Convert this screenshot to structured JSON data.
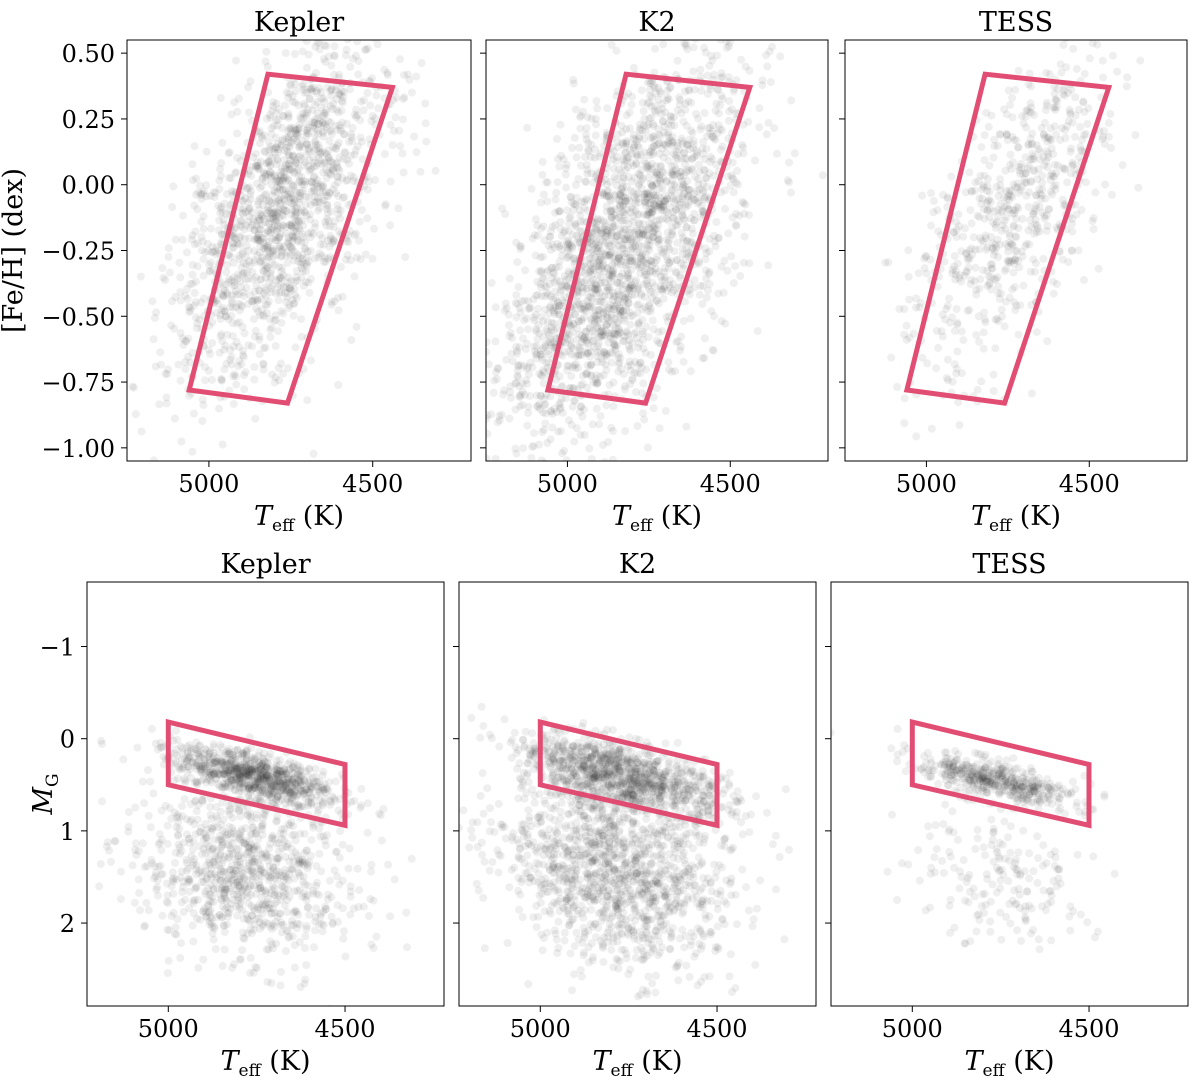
{
  "figure": {
    "accent_color": "#e0446b",
    "point_color": "#222222"
  },
  "chart_data": [
    {
      "type": "scatter",
      "title": "Kepler",
      "xlabel": "T_eff (K)",
      "ylabel": "[Fe/H] (dex)",
      "xlim": [
        5250,
        4200
      ],
      "ylim": [
        -1.05,
        0.55
      ],
      "xticks": [
        5000,
        4500
      ],
      "yticks": [
        0.5,
        0.25,
        0.0,
        -0.25,
        -0.5,
        -0.75,
        -1.0
      ],
      "ytick_labels": [
        "0.50",
        "0.25",
        "0.00",
        "−0.25",
        "−0.50",
        "−0.75",
        "−1.00"
      ],
      "region": [
        [
          5060,
          -0.78
        ],
        [
          4820,
          0.42
        ],
        [
          4440,
          0.37
        ],
        [
          4760,
          -0.83
        ]
      ],
      "cluster": {
        "x_mean": 4775,
        "x_sd": 165,
        "y_mean": -0.1,
        "y_sd": 0.26,
        "slope": -0.0013,
        "n": 1500
      }
    },
    {
      "type": "scatter",
      "title": "K2",
      "xlabel": "T_eff (K)",
      "ylabel": "",
      "xlim": [
        5250,
        4200
      ],
      "ylim": [
        -1.05,
        0.55
      ],
      "xticks": [
        5000,
        4500
      ],
      "region": [
        [
          5060,
          -0.78
        ],
        [
          4820,
          0.42
        ],
        [
          4440,
          0.37
        ],
        [
          4760,
          -0.83
        ]
      ],
      "cluster": {
        "x_mean": 4830,
        "x_sd": 185,
        "y_mean": -0.25,
        "y_sd": 0.3,
        "slope": -0.0012,
        "n": 2200
      }
    },
    {
      "type": "scatter",
      "title": "TESS",
      "xlabel": "T_eff (K)",
      "ylabel": "",
      "xlim": [
        5250,
        4200
      ],
      "ylim": [
        -1.05,
        0.55
      ],
      "xticks": [
        5000,
        4500
      ],
      "region": [
        [
          5060,
          -0.78
        ],
        [
          4820,
          0.42
        ],
        [
          4440,
          0.37
        ],
        [
          4760,
          -0.83
        ]
      ],
      "cluster": {
        "x_mean": 4730,
        "x_sd": 160,
        "y_mean": -0.1,
        "y_sd": 0.23,
        "slope": -0.0013,
        "n": 650
      }
    },
    {
      "type": "scatter",
      "title": "Kepler",
      "xlabel": "T_eff (K)",
      "ylabel": "M_G",
      "xlim": [
        5230,
        4220
      ],
      "ylim": [
        2.9,
        -1.7
      ],
      "xticks": [
        5000,
        4500
      ],
      "yticks": [
        -1,
        0,
        1,
        2
      ],
      "ytick_labels": [
        "−1",
        "0",
        "1",
        "2"
      ],
      "region": [
        [
          5000,
          -0.18
        ],
        [
          5000,
          0.5
        ],
        [
          4500,
          0.94
        ],
        [
          4500,
          0.28
        ]
      ],
      "clusters": [
        {
          "x_mean": 4760,
          "x_sd": 120,
          "y_mean": 0.4,
          "y_sd": 0.12,
          "slope": -0.0009,
          "n": 800
        },
        {
          "x_mean": 4780,
          "x_sd": 150,
          "y_mean": 1.45,
          "y_sd": 0.45,
          "slope": -0.0006,
          "n": 900
        }
      ]
    },
    {
      "type": "scatter",
      "title": "K2",
      "xlabel": "T_eff (K)",
      "ylabel": "",
      "xlim": [
        5230,
        4220
      ],
      "ylim": [
        2.9,
        -1.7
      ],
      "xticks": [
        5000,
        4500
      ],
      "region": [
        [
          5000,
          -0.18
        ],
        [
          5000,
          0.5
        ],
        [
          4500,
          0.94
        ],
        [
          4500,
          0.28
        ]
      ],
      "clusters": [
        {
          "x_mean": 4770,
          "x_sd": 140,
          "y_mean": 0.4,
          "y_sd": 0.18,
          "slope": -0.0009,
          "n": 1000
        },
        {
          "x_mean": 4780,
          "x_sd": 160,
          "y_mean": 1.45,
          "y_sd": 0.5,
          "slope": -0.0006,
          "n": 1300
        }
      ]
    },
    {
      "type": "scatter",
      "title": "TESS",
      "xlabel": "T_eff (K)",
      "ylabel": "",
      "xlim": [
        5230,
        4220
      ],
      "ylim": [
        2.9,
        -1.7
      ],
      "xticks": [
        5000,
        4500
      ],
      "region": [
        [
          5000,
          -0.18
        ],
        [
          5000,
          0.5
        ],
        [
          4500,
          0.94
        ],
        [
          4500,
          0.28
        ]
      ],
      "clusters": [
        {
          "x_mean": 4760,
          "x_sd": 110,
          "y_mean": 0.45,
          "y_sd": 0.1,
          "slope": -0.0009,
          "n": 450
        },
        {
          "x_mean": 4760,
          "x_sd": 130,
          "y_mean": 1.5,
          "y_sd": 0.35,
          "slope": -0.0006,
          "n": 180
        }
      ]
    }
  ]
}
